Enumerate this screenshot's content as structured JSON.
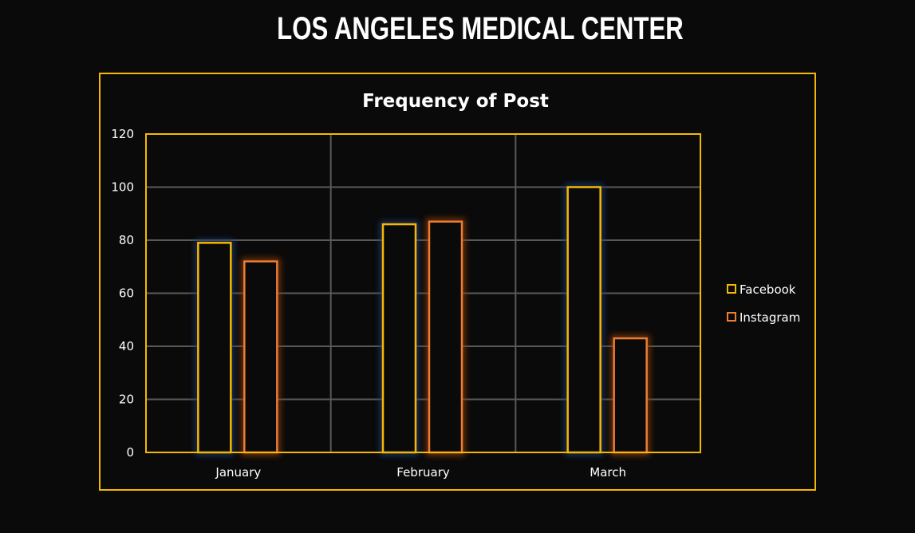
{
  "header": {
    "title": "LOS ANGELES MEDICAL CENTER"
  },
  "chart_data": {
    "type": "bar",
    "title": "Frequency of Post",
    "categories": [
      "January",
      "February",
      "March"
    ],
    "series": [
      {
        "name": "Facebook",
        "values": [
          79,
          86,
          100
        ],
        "color": "#f5b800"
      },
      {
        "name": "Instagram",
        "values": [
          72,
          87,
          43
        ],
        "color": "#ed7d31"
      }
    ],
    "ylim": [
      0,
      120
    ],
    "yticks": [
      0,
      20,
      40,
      60,
      80,
      100,
      120
    ],
    "grid": true,
    "legend": "right",
    "xlabel": "",
    "ylabel": "",
    "colors": {
      "background": "#0a0a0a",
      "frame": "#f5b800",
      "grid": "#595959"
    }
  }
}
